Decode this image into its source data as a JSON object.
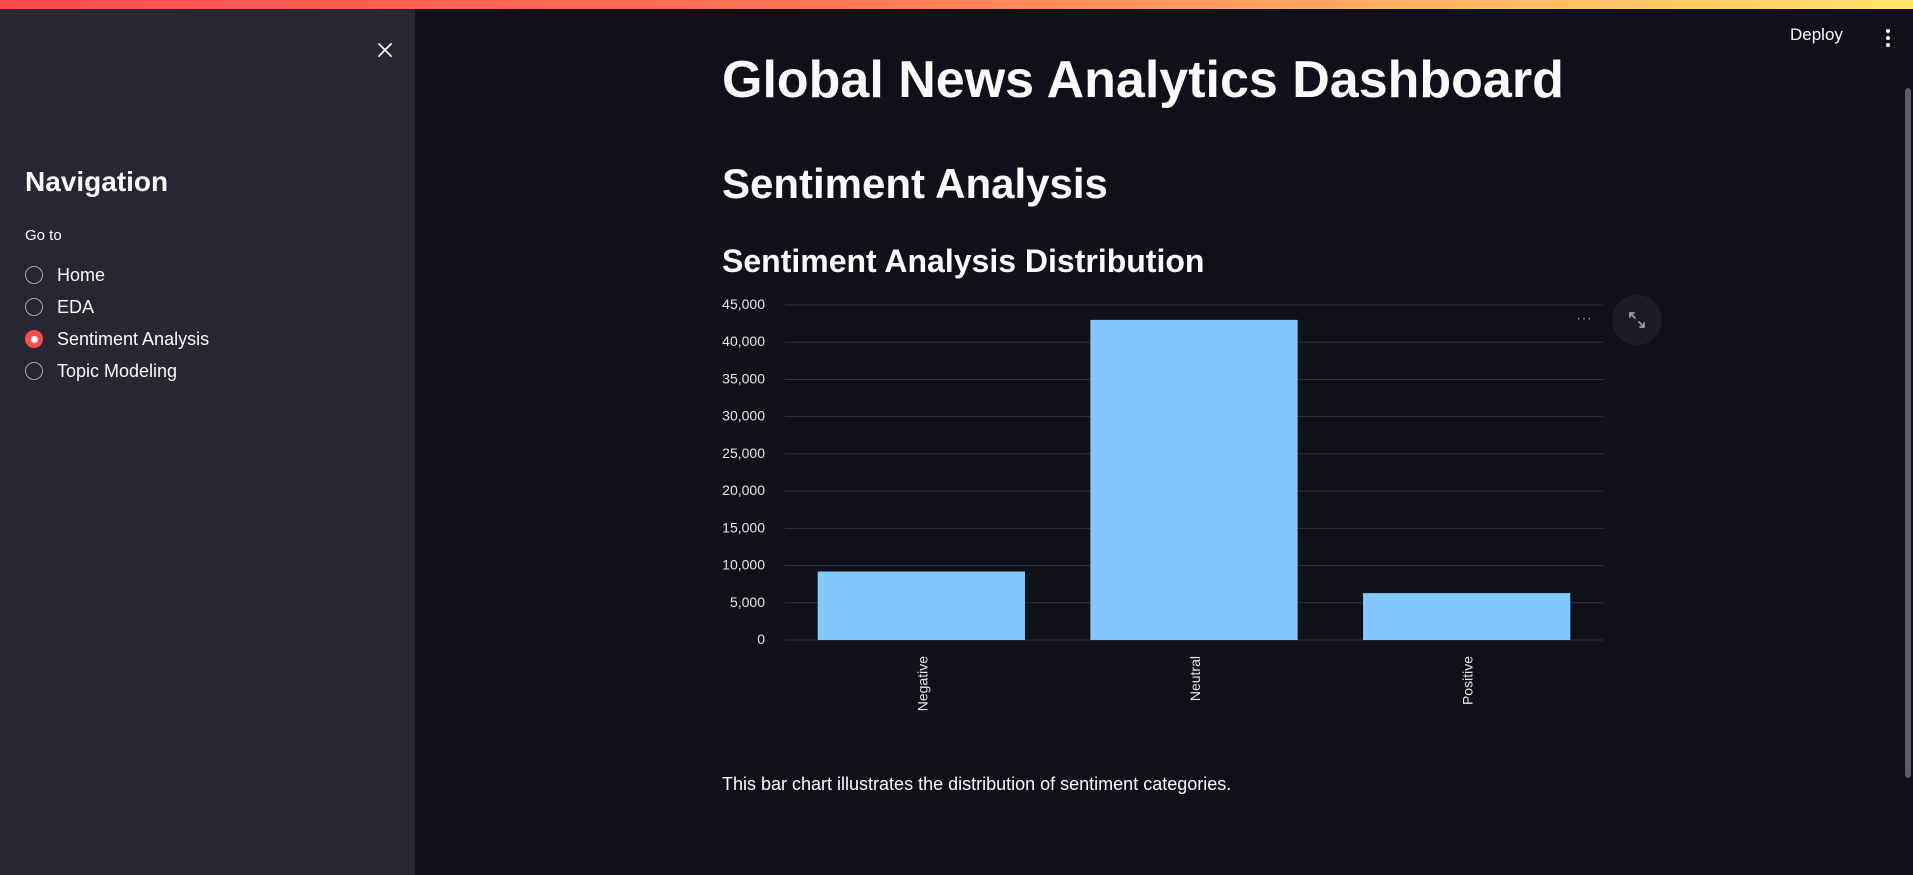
{
  "sidebar": {
    "title": "Navigation",
    "radio_label": "Go to",
    "options": [
      {
        "label": "Home",
        "selected": false
      },
      {
        "label": "EDA",
        "selected": false
      },
      {
        "label": "Sentiment Analysis",
        "selected": true
      },
      {
        "label": "Topic Modeling",
        "selected": false
      }
    ],
    "close_icon": "close-icon"
  },
  "header": {
    "deploy_label": "Deploy",
    "menu_icon": "kebab-menu-icon"
  },
  "main": {
    "title": "Global News Analytics Dashboard",
    "section_title": "Sentiment Analysis",
    "chart_title": "Sentiment Analysis Distribution",
    "caption": "This bar chart illustrates the distribution of sentiment categories.",
    "chart_more_label": "···"
  },
  "colors": {
    "accent": "#ff4b4b",
    "bar": "#83c9ff",
    "background": "#0e1117",
    "sidebar": "#262730"
  },
  "chart_data": {
    "type": "bar",
    "categories": [
      "Negative",
      "Neutral",
      "Positive"
    ],
    "values": [
      9200,
      43000,
      6300
    ],
    "ylim": [
      0,
      45000
    ],
    "yticks": [
      0,
      5000,
      10000,
      15000,
      20000,
      25000,
      30000,
      35000,
      40000,
      45000
    ],
    "ytick_labels": [
      "0",
      "5,000",
      "10,000",
      "15,000",
      "20,000",
      "25,000",
      "30,000",
      "35,000",
      "40,000",
      "45,000"
    ],
    "xlabel": "",
    "ylabel": "",
    "grid": true,
    "legend": false
  }
}
